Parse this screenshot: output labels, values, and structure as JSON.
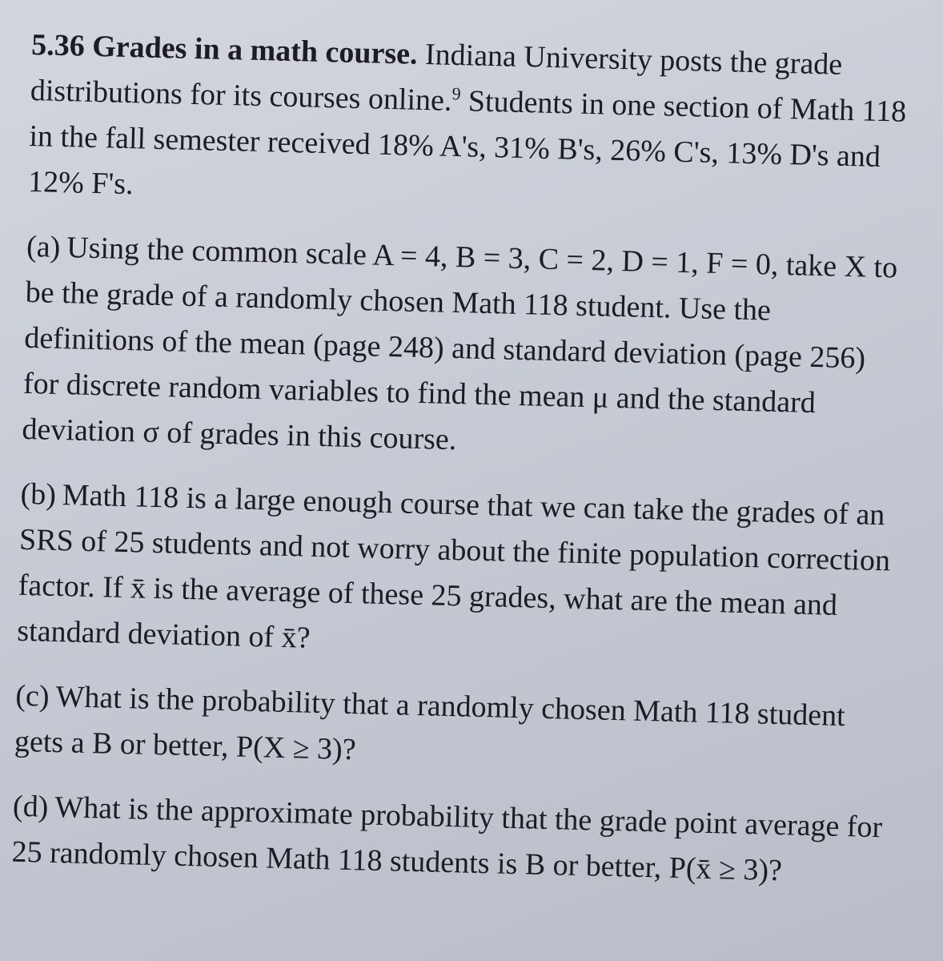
{
  "exercise": {
    "number": "5.36",
    "title": "Grades in a math course.",
    "intro_before_note": "Indiana University posts the grade distributions for its courses online.",
    "footnote_ref": "9",
    "intro_after_note": "Students in one section of Math 118 in the fall semester received 18% A's, 31% B's, 26% C's, 13% D's and 12% F's.",
    "parts": [
      {
        "label": "(a)",
        "text": "Using the common scale A = 4, B = 3, C = 2, D = 1, F = 0, take X to be the grade of a randomly chosen Math 118 student. Use the definitions of the mean (page 248) and standard deviation (page 256) for discrete random variables to find the mean μ and the standard deviation σ of grades in this course."
      },
      {
        "label": "(b)",
        "text": "Math 118 is a large enough course that we can take the grades of an SRS of 25 students and not worry about the finite population correction factor. If x̄ is the average of these 25 grades, what are the mean and standard deviation of x̄?"
      },
      {
        "label": "(c)",
        "text": "What is the probability that a randomly chosen Math 118 student gets a B or better, P(X ≥ 3)?"
      },
      {
        "label": "(d)",
        "text": "What is the approximate probability that the grade point average for 25 randomly chosen Math 118 students is B or better, P(x̄ ≥ 3)?"
      }
    ]
  }
}
